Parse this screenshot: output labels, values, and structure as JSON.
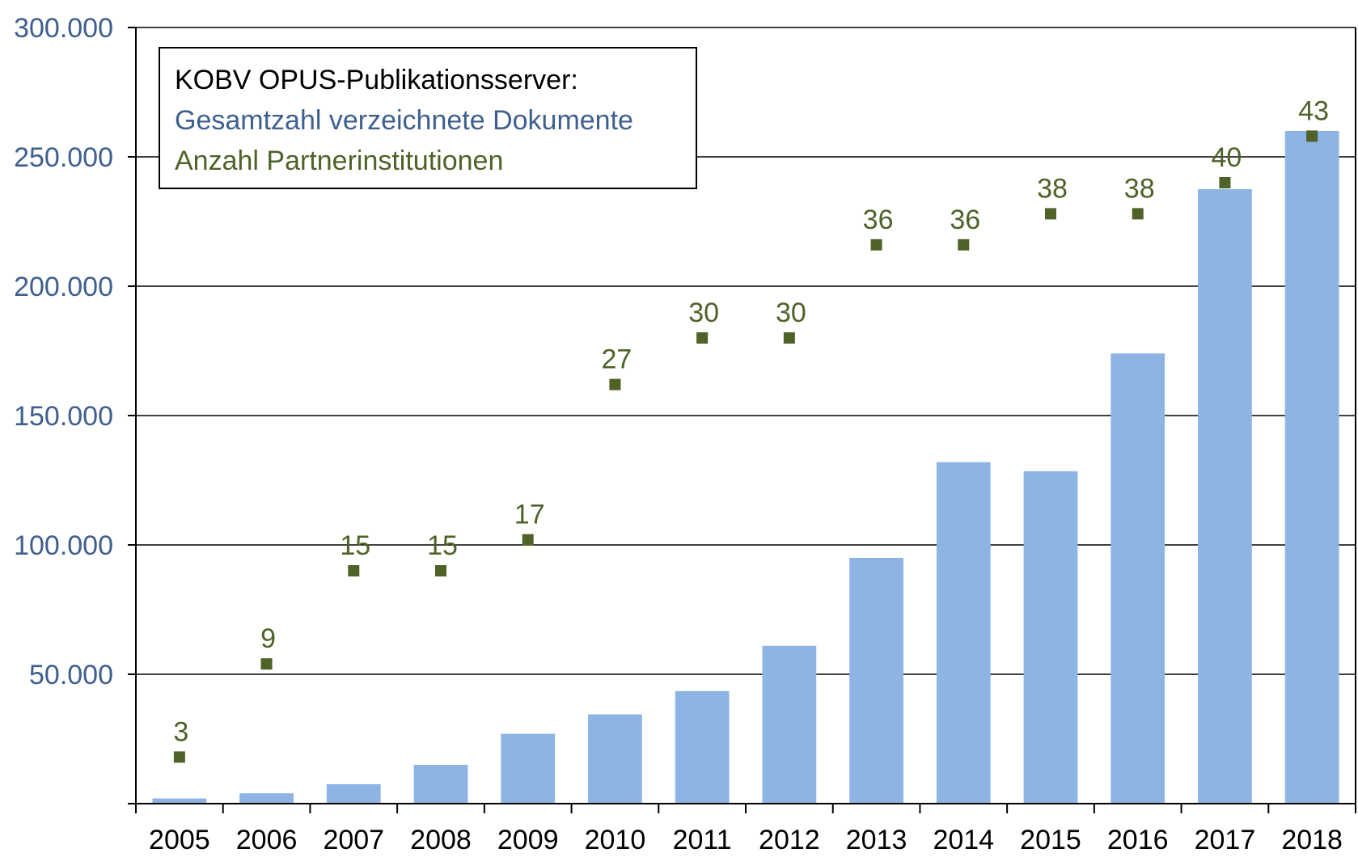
{
  "chart_data": {
    "type": "bar",
    "title": "KOBV OPUS-Publikationsserver:",
    "categories": [
      "2005",
      "2006",
      "2007",
      "2008",
      "2009",
      "2010",
      "2011",
      "2012",
      "2013",
      "2014",
      "2015",
      "2016",
      "2017",
      "2018"
    ],
    "series": [
      {
        "name": "Gesamtzahl verzeichnete Dokumente",
        "type": "bar",
        "color": "#8eb4e3",
        "values": [
          2000,
          4000,
          7500,
          15000,
          27000,
          34500,
          43500,
          61000,
          95000,
          132000,
          128500,
          174000,
          237500,
          260000
        ]
      },
      {
        "name": "Anzahl Partnerinstitutionen",
        "type": "scatter",
        "color": "#4f6228",
        "values": [
          3,
          9,
          15,
          15,
          17,
          27,
          30,
          30,
          36,
          36,
          38,
          38,
          40,
          43
        ],
        "labels": [
          "3",
          "9",
          "15",
          "15",
          "17",
          "27",
          "30",
          "30",
          "36",
          "36",
          "38",
          "38",
          "40",
          "43"
        ]
      }
    ],
    "ylim": [
      0,
      300000
    ],
    "secondary_ylim": [
      0,
      50
    ],
    "y_ticks": [
      50000,
      100000,
      150000,
      200000,
      250000,
      300000
    ],
    "y_tick_labels": [
      "50.000",
      "100.000",
      "150.000",
      "200.000",
      "250.000",
      "300.000"
    ],
    "grid": true,
    "legend_placement": "top-left"
  }
}
